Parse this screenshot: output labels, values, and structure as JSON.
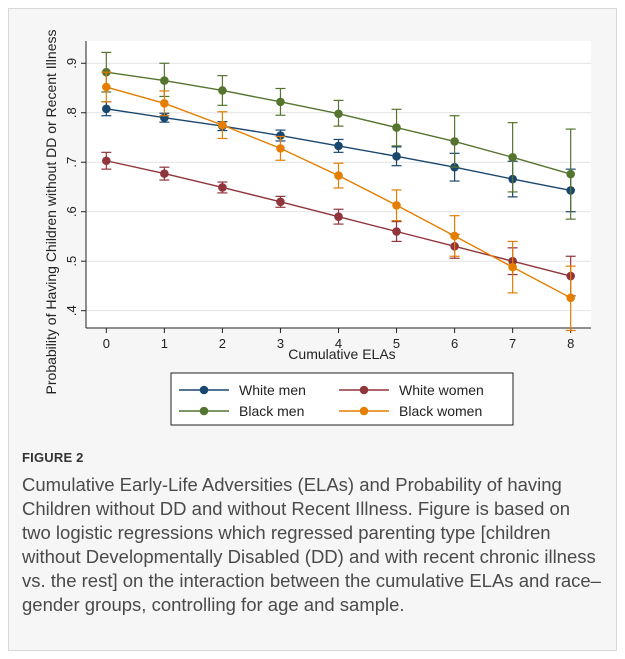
{
  "figure": {
    "label": "FIGURE 2",
    "caption": "Cumulative Early-Life Adversities (ELAs) and Probability of having Children without DD and without Recent Illness. Figure is based on two logistic regressions which regressed parenting type [children without Developmentally Disabled (DD) and with recent chronic illness vs. the rest] on the interaction between the cumulative ELAs and race–gender groups, controlling for age and sample."
  },
  "chart_data": {
    "type": "line",
    "xlabel": "Cumulative ELAs",
    "ylabel": "Probability of Having Children without DD or Recent Illness",
    "x": [
      0,
      1,
      2,
      3,
      4,
      5,
      6,
      7,
      8
    ],
    "xlim": [
      -0.35,
      8.35
    ],
    "ylim": [
      0.365,
      0.945
    ],
    "yticks": [
      0.4,
      0.5,
      0.6,
      0.7,
      0.8,
      0.9
    ],
    "ytick_labels": [
      ".4",
      ".5",
      ".6",
      ".7",
      ".8",
      ".9"
    ],
    "xtick_labels": [
      "0",
      "1",
      "2",
      "3",
      "4",
      "5",
      "6",
      "7",
      "8"
    ],
    "grid": true,
    "legend_position": "bottom",
    "series": [
      {
        "name": "White men",
        "color": "#1a476f",
        "values": [
          0.808,
          0.79,
          0.773,
          0.754,
          0.733,
          0.712,
          0.69,
          0.666,
          0.643
        ],
        "lower": [
          0.794,
          0.781,
          0.764,
          0.743,
          0.72,
          0.693,
          0.662,
          0.63,
          0.6
        ],
        "upper": [
          0.822,
          0.799,
          0.782,
          0.765,
          0.746,
          0.731,
          0.718,
          0.702,
          0.686
        ]
      },
      {
        "name": "White women",
        "color": "#90353b",
        "values": [
          0.703,
          0.677,
          0.649,
          0.62,
          0.59,
          0.56,
          0.53,
          0.5,
          0.47
        ],
        "lower": [
          0.686,
          0.664,
          0.638,
          0.609,
          0.575,
          0.54,
          0.506,
          0.473,
          0.43
        ],
        "upper": [
          0.72,
          0.69,
          0.66,
          0.631,
          0.605,
          0.58,
          0.554,
          0.527,
          0.51
        ]
      },
      {
        "name": "Black men",
        "color": "#55752f",
        "values": [
          0.882,
          0.865,
          0.845,
          0.822,
          0.798,
          0.77,
          0.742,
          0.71,
          0.676
        ],
        "lower": [
          0.842,
          0.833,
          0.815,
          0.795,
          0.773,
          0.733,
          0.69,
          0.64,
          0.585
        ],
        "upper": [
          0.922,
          0.9,
          0.875,
          0.849,
          0.825,
          0.807,
          0.794,
          0.78,
          0.767
        ]
      },
      {
        "name": "Black women",
        "color": "#e37e00",
        "values": [
          0.852,
          0.819,
          0.775,
          0.728,
          0.673,
          0.613,
          0.551,
          0.488,
          0.426
        ],
        "lower": [
          0.822,
          0.794,
          0.748,
          0.704,
          0.648,
          0.582,
          0.51,
          0.436,
          0.36
        ],
        "upper": [
          0.882,
          0.844,
          0.802,
          0.752,
          0.698,
          0.644,
          0.592,
          0.54,
          0.49
        ]
      }
    ]
  }
}
